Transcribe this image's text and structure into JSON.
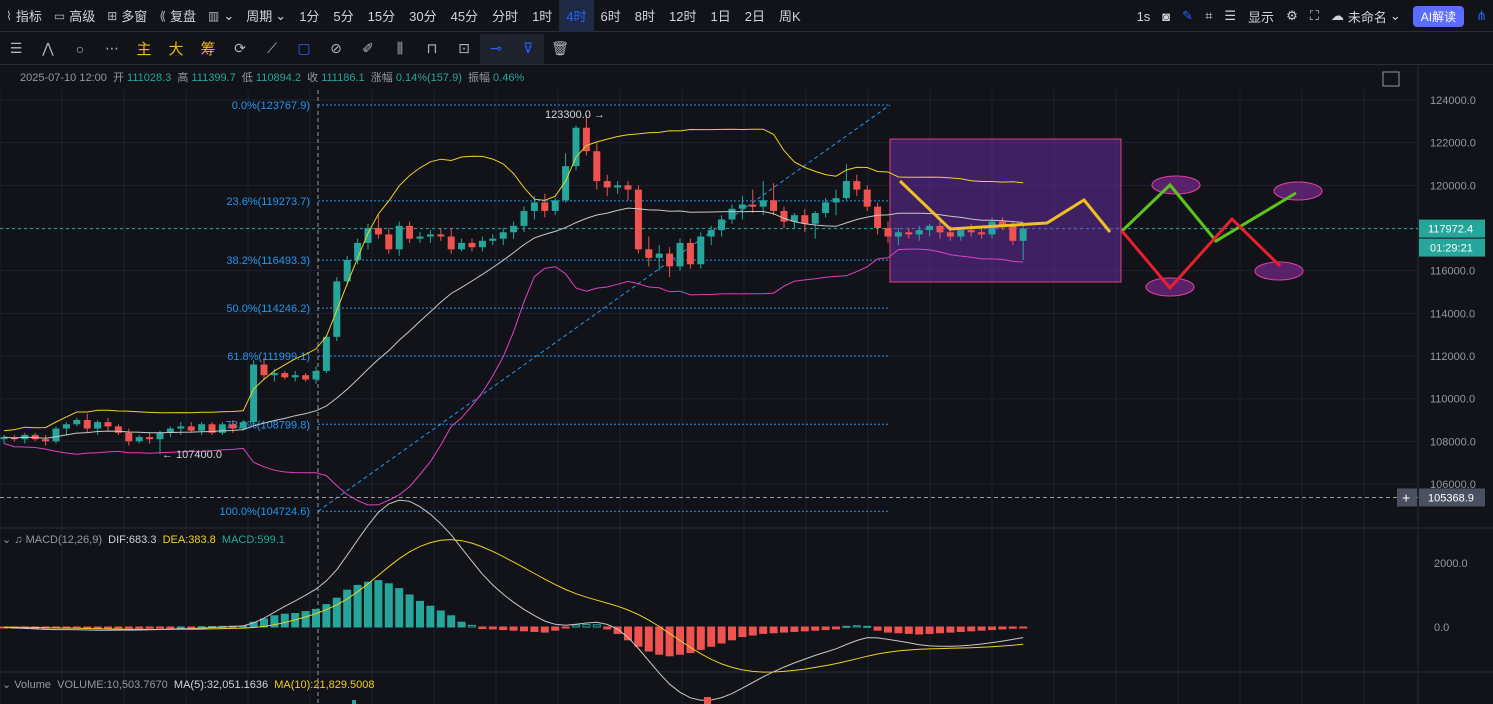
{
  "topbar": {
    "left": [
      {
        "icon": "chart-icon",
        "label": "指标"
      },
      {
        "icon": "calendar-icon",
        "label": "高级"
      },
      {
        "icon": "grid-icon",
        "label": "多窗"
      },
      {
        "icon": "rewind-icon",
        "label": "复盘"
      },
      {
        "icon": "candle-type-icon",
        "label": ""
      },
      {
        "icon": "",
        "label": "周期"
      }
    ],
    "timeframes": [
      "1分",
      "5分",
      "15分",
      "30分",
      "45分",
      "分时",
      "1时",
      "4时",
      "6时",
      "8时",
      "12时",
      "1日",
      "2日",
      "周K"
    ],
    "active_timeframe": "4时",
    "right": {
      "interval": "1s",
      "display": "显示",
      "unnamed": "未命名",
      "ai": "AI解读"
    }
  },
  "ohlc": {
    "date": "2025-07-10 12:00",
    "open_label": "开",
    "open": "111028.3",
    "high_label": "高",
    "high": "111399.7",
    "low_label": "低",
    "low": "110894.2",
    "close_label": "收",
    "close": "111186.1",
    "chg_label": "涨幅",
    "chg": "0.14%(157.9)",
    "amp_label": "振幅",
    "amp": "0.46%"
  },
  "chart": {
    "yaxis": [
      "124000.0",
      "122000.0",
      "120000.0",
      "118000.0",
      "116000.0",
      "114000.0",
      "112000.0",
      "110000.0",
      "108000.0",
      "106000.0"
    ],
    "last_price": "117972.4",
    "countdown": "01:29:21",
    "crosshair_price": "105368.9",
    "high_marker": "123300.0 →",
    "low_marker": "← 107400.0",
    "fib": [
      {
        "label": "0.0%(123767.9)",
        "price": 123767.9
      },
      {
        "label": "23.6%(119273.7)",
        "price": 119273.7
      },
      {
        "label": "38.2%(116493.3)",
        "price": 116493.3
      },
      {
        "label": "50.0%(114246.2)",
        "price": 114246.2
      },
      {
        "label": "61.8%(111999.1)",
        "price": 111999.1
      },
      {
        "label": "78.6%(108799.8)",
        "price": 108799.8
      },
      {
        "label": "100.0%(104724.6)",
        "price": 104724.6
      }
    ]
  },
  "macd": {
    "name": "MACD(12,26,9)",
    "dif": "DIF:683.3",
    "dea": "DEA:383.8",
    "macd": "MACD:599.1",
    "axis": [
      "2000.0",
      "0.0"
    ]
  },
  "volume": {
    "name": "Volume",
    "vol": "VOLUME:10,503.7670",
    "ma5": "MA(5):32,051.1636",
    "ma10": "MA(10):21,829.5008"
  },
  "colors": {
    "up": "#26a69a",
    "down": "#ef5350",
    "fib": "#2196f3",
    "accent": "#2962ff",
    "yellow": "#f0d020",
    "pink": "#e040c0"
  },
  "candles": [
    [
      108100,
      108300,
      107900,
      108200
    ],
    [
      108200,
      108300,
      108000,
      108100
    ],
    [
      108100,
      108400,
      107900,
      108300
    ],
    [
      108300,
      108400,
      108000,
      108100
    ],
    [
      108100,
      108300,
      107800,
      108000
    ],
    [
      108000,
      108700,
      107900,
      108600
    ],
    [
      108600,
      108900,
      108300,
      108800
    ],
    [
      108800,
      109100,
      108700,
      109000
    ],
    [
      109000,
      109300,
      108400,
      108600
    ],
    [
      108600,
      109000,
      108300,
      108900
    ],
    [
      108900,
      109100,
      108500,
      108700
    ],
    [
      108700,
      108800,
      108300,
      108400
    ],
    [
      108400,
      108600,
      107800,
      108000
    ],
    [
      108000,
      108300,
      107900,
      108200
    ],
    [
      108200,
      108400,
      107900,
      108100
    ],
    [
      108100,
      108500,
      107400,
      108400
    ],
    [
      108400,
      108700,
      108200,
      108600
    ],
    [
      108600,
      108900,
      108300,
      108700
    ],
    [
      108700,
      108900,
      108400,
      108500
    ],
    [
      108500,
      108900,
      108300,
      108800
    ],
    [
      108800,
      108900,
      108300,
      108400
    ],
    [
      108400,
      108900,
      108300,
      108800
    ],
    [
      108800,
      109000,
      108400,
      108600
    ],
    [
      108600,
      109000,
      108500,
      108900
    ],
    [
      108900,
      111800,
      108800,
      111600
    ],
    [
      111600,
      111900,
      110900,
      111100
    ],
    [
      111100,
      111400,
      110800,
      111200
    ],
    [
      111200,
      111300,
      110900,
      111000
    ],
    [
      111000,
      111300,
      110800,
      111100
    ],
    [
      111100,
      111200,
      110800,
      110900
    ],
    [
      110900,
      111500,
      110700,
      111300
    ],
    [
      111300,
      113000,
      111200,
      112900
    ],
    [
      112900,
      115700,
      112700,
      115500
    ],
    [
      115500,
      116700,
      115300,
      116500
    ],
    [
      116500,
      117500,
      116300,
      117300
    ],
    [
      117300,
      118200,
      117000,
      118000
    ],
    [
      118000,
      118600,
      117500,
      117700
    ],
    [
      117700,
      118000,
      116800,
      117000
    ],
    [
      117000,
      118300,
      116700,
      118100
    ],
    [
      118100,
      118300,
      117300,
      117500
    ],
    [
      117500,
      117800,
      117300,
      117600
    ],
    [
      117600,
      117900,
      117300,
      117700
    ],
    [
      117700,
      118000,
      117400,
      117600
    ],
    [
      117600,
      118000,
      116800,
      117000
    ],
    [
      117000,
      117500,
      116900,
      117300
    ],
    [
      117300,
      117500,
      116900,
      117100
    ],
    [
      117100,
      117600,
      116900,
      117400
    ],
    [
      117400,
      117700,
      117200,
      117500
    ],
    [
      117500,
      118000,
      117200,
      117800
    ],
    [
      117800,
      118300,
      117500,
      118100
    ],
    [
      118100,
      119000,
      117800,
      118800
    ],
    [
      118800,
      119500,
      118400,
      119200
    ],
    [
      119200,
      119600,
      118500,
      118800
    ],
    [
      118800,
      119400,
      118600,
      119300
    ],
    [
      119300,
      121500,
      119200,
      120900
    ],
    [
      120900,
      122800,
      120700,
      122700
    ],
    [
      122700,
      123300,
      121400,
      121600
    ],
    [
      121600,
      122000,
      119800,
      120200
    ],
    [
      120200,
      120500,
      119500,
      119900
    ],
    [
      119900,
      120200,
      119600,
      120000
    ],
    [
      120000,
      120200,
      119300,
      119800
    ],
    [
      119800,
      120000,
      116800,
      117000
    ],
    [
      117000,
      117600,
      116200,
      116600
    ],
    [
      116600,
      117200,
      116000,
      116800
    ],
    [
      116800,
      117100,
      115700,
      116200
    ],
    [
      116200,
      117500,
      116000,
      117300
    ],
    [
      117300,
      117500,
      116100,
      116300
    ],
    [
      116300,
      117800,
      116100,
      117600
    ],
    [
      117600,
      118100,
      117200,
      117900
    ],
    [
      117900,
      118600,
      117600,
      118400
    ],
    [
      118400,
      119100,
      118200,
      118900
    ],
    [
      118900,
      119500,
      118400,
      119100
    ],
    [
      119100,
      119800,
      118700,
      119000
    ],
    [
      119000,
      120200,
      118600,
      119300
    ],
    [
      119300,
      120100,
      118600,
      118800
    ],
    [
      118800,
      119000,
      118000,
      118300
    ],
    [
      118300,
      118700,
      118000,
      118600
    ],
    [
      118600,
      118900,
      117800,
      118200
    ],
    [
      118200,
      118800,
      117500,
      118700
    ],
    [
      118700,
      119400,
      118500,
      119200
    ],
    [
      119200,
      119800,
      118600,
      119400
    ],
    [
      119400,
      121000,
      119300,
      120200
    ],
    [
      120200,
      120500,
      119500,
      119800
    ],
    [
      119800,
      120000,
      118800,
      119000
    ],
    [
      119000,
      119200,
      117700,
      118000
    ],
    [
      118000,
      118300,
      117300,
      117600
    ],
    [
      117600,
      118000,
      117200,
      117800
    ],
    [
      117800,
      118000,
      117500,
      117700
    ],
    [
      117700,
      118100,
      117400,
      117900
    ],
    [
      117900,
      118200,
      117600,
      118100
    ],
    [
      118100,
      118300,
      117500,
      117800
    ],
    [
      117800,
      118100,
      117400,
      117600
    ],
    [
      117600,
      118000,
      117400,
      117900
    ],
    [
      117900,
      118200,
      117600,
      117800
    ],
    [
      117800,
      118000,
      117500,
      117700
    ],
    [
      117700,
      118500,
      117500,
      118300
    ],
    [
      118300,
      118500,
      117900,
      118100
    ],
    [
      118100,
      118300,
      117200,
      117400
    ],
    [
      117400,
      118100,
      116500,
      117972
    ]
  ],
  "macd_hist": [
    -20,
    -30,
    -25,
    -35,
    -40,
    -30,
    -20,
    -25,
    -40,
    -35,
    -30,
    -20,
    -25,
    -20,
    -15,
    -10,
    -5,
    0,
    -5,
    10,
    15,
    20,
    25,
    30,
    150,
    250,
    350,
    400,
    420,
    480,
    550,
    700,
    900,
    1150,
    1300,
    1400,
    1450,
    1350,
    1200,
    1000,
    800,
    650,
    500,
    350,
    150,
    50,
    -50,
    -60,
    -80,
    -100,
    -120,
    -140,
    -160,
    -100,
    -20,
    60,
    80,
    70,
    -60,
    -200,
    -400,
    -600,
    -750,
    -850,
    -900,
    -850,
    -800,
    -700,
    -600,
    -500,
    -400,
    -300,
    -250,
    -200,
    -180,
    -160,
    -140,
    -120,
    -100,
    -80,
    -60,
    20,
    40,
    20,
    -100,
    -160,
    -180,
    -200,
    -220,
    -200,
    -180,
    -160,
    -140,
    -120,
    -100,
    -80,
    -60,
    -40,
    -20
  ],
  "projections": {
    "green": [
      [
        1122,
        231
      ],
      [
        1170,
        185
      ],
      [
        1216,
        241
      ],
      [
        1296,
        193
      ]
    ],
    "red": [
      [
        1122,
        231
      ],
      [
        1170,
        288
      ],
      [
        1232,
        219
      ],
      [
        1280,
        266
      ]
    ],
    "yellow": [
      [
        900,
        181
      ],
      [
        950,
        229
      ],
      [
        1047,
        223
      ],
      [
        1084,
        200
      ],
      [
        1110,
        232
      ]
    ],
    "ellipses": [
      [
        1176,
        185
      ],
      [
        1170,
        287
      ],
      [
        1298,
        191
      ],
      [
        1279,
        271
      ]
    ]
  }
}
